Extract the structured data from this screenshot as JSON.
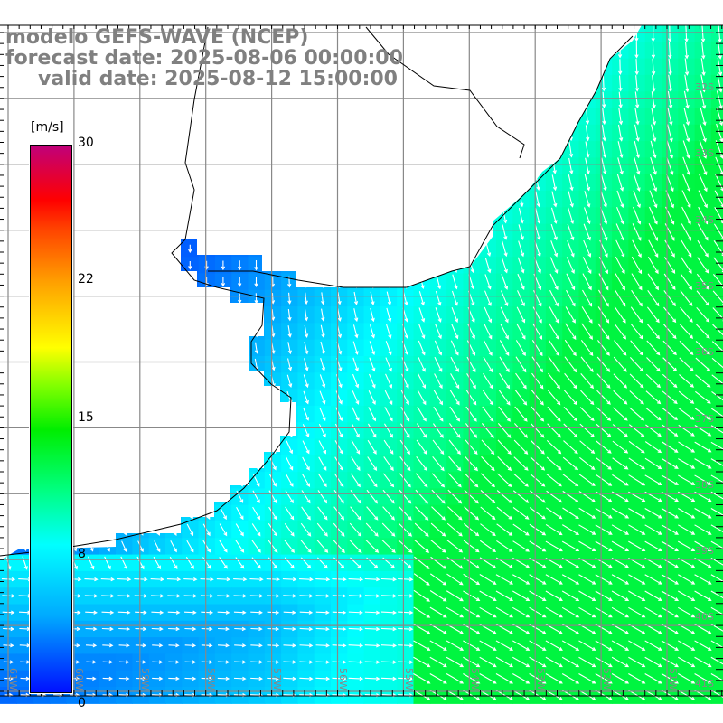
{
  "title": {
    "line1": "modelo GEFS-WAVE (NCEP)",
    "line2": "forecast date: 2025-08-06 00:00:00",
    "line3": "valid date: 2025-08-12 15:00:00"
  },
  "colorbar": {
    "unit": "[m/s]",
    "labels": [
      "30",
      "22",
      "15",
      "8",
      "0"
    ],
    "colors": [
      "#c0007a",
      "#ff0000",
      "#ffff00",
      "#00ffff",
      "#0010ff"
    ]
  },
  "latitude_labels": [
    "32S",
    "33S",
    "34S",
    "35S",
    "36S",
    "37S",
    "38S",
    "39S",
    "40S",
    "41S"
  ],
  "longitude_labels": [
    "61W",
    "60W",
    "59W",
    "58W",
    "57W",
    "56W",
    "55W",
    "54W",
    "53W",
    "52W",
    "51W"
  ]
}
